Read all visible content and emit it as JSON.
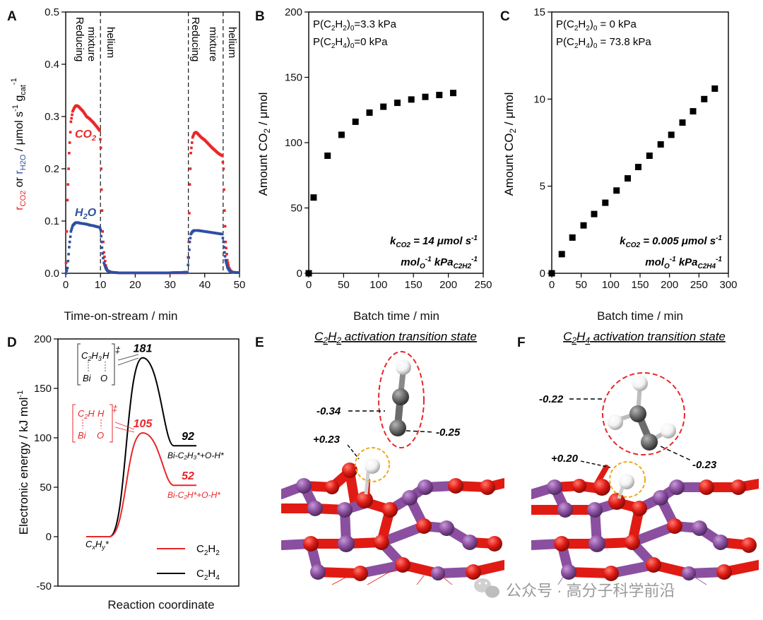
{
  "chart_data": [
    {
      "panel": "A",
      "type": "scatter",
      "xlabel": "Time-on-stream / min",
      "ylabel_parts": [
        "r",
        "CO2",
        " or ",
        "r",
        "H2O",
        " / μmol s",
        "-1",
        " g",
        "cat",
        "-1"
      ],
      "xlim": [
        0,
        50
      ],
      "ylim": [
        0,
        0.5
      ],
      "xticks": [
        "0",
        "10",
        "20",
        "30",
        "40",
        "50"
      ],
      "yticks": [
        "0.0",
        "0.1",
        "0.2",
        "0.3",
        "0.4",
        "0.5"
      ],
      "phase_labels": [
        "Reducing",
        "mixture",
        "helium",
        "Reducing",
        "mixture",
        "helium"
      ],
      "phase_boundaries": [
        10,
        35.3,
        45.3
      ],
      "series": [
        {
          "name": "CO2",
          "color": "#e8272a",
          "x": [
            0.1,
            0.5,
            1,
            1.5,
            2,
            2.5,
            3,
            3.5,
            4,
            5,
            6,
            7,
            8,
            9,
            9.8,
            10.1,
            10.3,
            10.6,
            11,
            11.5,
            12,
            13,
            15,
            20,
            25,
            30,
            35,
            35.4,
            35.7,
            36,
            36.5,
            37,
            37.5,
            38,
            39,
            40,
            41,
            42,
            43,
            44,
            45,
            45.4,
            45.7,
            46,
            46.5,
            47,
            47.5,
            48,
            50
          ],
          "y": [
            0.02,
            0.14,
            0.23,
            0.29,
            0.31,
            0.317,
            0.321,
            0.32,
            0.317,
            0.31,
            0.3,
            0.295,
            0.288,
            0.28,
            0.273,
            0.24,
            0.16,
            0.08,
            0.04,
            0.015,
            0.005,
            0.002,
            0.001,
            0.001,
            0.001,
            0.001,
            0.001,
            0.06,
            0.17,
            0.23,
            0.26,
            0.268,
            0.27,
            0.267,
            0.26,
            0.255,
            0.248,
            0.241,
            0.235,
            0.229,
            0.225,
            0.2,
            0.12,
            0.06,
            0.025,
            0.01,
            0.004,
            0.002,
            0.001
          ]
        },
        {
          "name": "H2O",
          "color": "#2e4fa3",
          "x": [
            0.1,
            0.5,
            1,
            1.5,
            2,
            2.5,
            3,
            3.5,
            4,
            5,
            6,
            7,
            8,
            9,
            9.8,
            10.1,
            10.3,
            10.6,
            11,
            11.5,
            12,
            13,
            15,
            20,
            25,
            30,
            35,
            35.4,
            35.7,
            36,
            36.5,
            37,
            37.5,
            38,
            39,
            40,
            41,
            42,
            43,
            44,
            45,
            45.4,
            45.7,
            46,
            46.5,
            47,
            47.5,
            48,
            50
          ],
          "y": [
            0,
            0.01,
            0.05,
            0.08,
            0.091,
            0.095,
            0.097,
            0.097,
            0.096,
            0.095,
            0.094,
            0.092,
            0.091,
            0.089,
            0.088,
            0.082,
            0.06,
            0.038,
            0.02,
            0.01,
            0.005,
            0.002,
            0.001,
            0.001,
            0.001,
            0.001,
            0.002,
            0.03,
            0.06,
            0.075,
            0.08,
            0.082,
            0.082,
            0.082,
            0.081,
            0.08,
            0.079,
            0.078,
            0.077,
            0.076,
            0.075,
            0.06,
            0.04,
            0.025,
            0.012,
            0.006,
            0.003,
            0.002,
            0.001
          ]
        }
      ],
      "series_labels": [
        "CO",
        "2",
        "H",
        "2",
        "O"
      ]
    },
    {
      "panel": "B",
      "type": "scatter",
      "xlabel": "Batch time / min",
      "ylabel_parts": [
        "Amount CO",
        "2",
        " / μmol"
      ],
      "xlim": [
        0,
        250
      ],
      "ylim": [
        0,
        200
      ],
      "xticks": [
        "0",
        "50",
        "100",
        "150",
        "200",
        "250"
      ],
      "yticks": [
        "0",
        "50",
        "100",
        "150",
        "200"
      ],
      "conditions": [
        [
          "P(C",
          "2",
          "H",
          "2",
          ")",
          "0",
          "=3.3 kPa"
        ],
        [
          "P(C",
          "2",
          "H",
          "4",
          ")",
          "0",
          "=0 kPa"
        ]
      ],
      "rate_label": [
        "k",
        "CO2",
        " = 14 μmol s",
        "-1",
        "mol",
        "O",
        "-1",
        " kPa",
        "C2H2",
        "-1"
      ],
      "x": [
        0,
        7,
        27,
        47,
        67,
        87,
        107,
        127,
        147,
        167,
        187,
        207
      ],
      "y": [
        0,
        58,
        90,
        106,
        116,
        123,
        127.5,
        130.5,
        133,
        135,
        136.5,
        138
      ]
    },
    {
      "panel": "C",
      "type": "scatter",
      "xlabel": "Batch time / min",
      "ylabel_parts": [
        "Amount CO",
        "2",
        " / μmol"
      ],
      "xlim": [
        0,
        300
      ],
      "ylim": [
        0,
        15
      ],
      "xticks": [
        "0",
        "50",
        "100",
        "150",
        "200",
        "250",
        "300"
      ],
      "yticks": [
        "0",
        "5",
        "10",
        "15"
      ],
      "conditions": [
        [
          "P(C",
          "2",
          "H",
          "2",
          ")",
          "0",
          " = 0 kPa"
        ],
        [
          "P(C",
          "2",
          "H",
          "4",
          ")",
          "0",
          " = 73.8 kPa"
        ]
      ],
      "rate_label": [
        "k",
        "CO2",
        " = 0.005 μmol s",
        "-1",
        "mol",
        "O",
        "-1",
        " kPa",
        "C2H4",
        "-1"
      ],
      "x": [
        0,
        17,
        35,
        54,
        72,
        91,
        110,
        129,
        147,
        166,
        185,
        203,
        222,
        240,
        259,
        277
      ],
      "y": [
        0,
        1.1,
        2.05,
        2.75,
        3.4,
        4.05,
        4.75,
        5.45,
        6.1,
        6.75,
        7.4,
        7.95,
        8.65,
        9.3,
        10.0,
        10.6
      ]
    },
    {
      "panel": "D",
      "type": "line",
      "xlabel": "Reaction coordinate",
      "ylabel_parts": [
        "Electronic energy / kJ mol",
        "-1"
      ],
      "ylim": [
        -50,
        200
      ],
      "yticks": [
        "-50",
        "0",
        "50",
        "100",
        "150",
        "200"
      ],
      "start_label": [
        "C",
        "x",
        "H",
        "y",
        "*"
      ],
      "series": [
        {
          "name": "C2H4",
          "color": "#000000",
          "levels": [
            0,
            181,
            92
          ],
          "barrier_label": "181",
          "end_label": "92",
          "product_label": "Bi-C₂H₃*+O-H*",
          "ts_label": [
            "C",
            "2",
            "H",
            "3",
            "H",
            "‡",
            "Bi",
            "O"
          ]
        },
        {
          "name": "C2H2",
          "color": "#e8272a",
          "levels": [
            0,
            105,
            52
          ],
          "barrier_label": "105",
          "end_label": "52",
          "product_label": "Bi-C₂H*+O-H*",
          "ts_label": [
            "C",
            "2",
            "H",
            "H",
            "‡",
            "Bi",
            "O"
          ]
        }
      ],
      "legend": [
        [
          "C",
          "2",
          "H",
          "2"
        ],
        [
          "C",
          "2",
          "H",
          "4"
        ]
      ]
    }
  ],
  "panels": {
    "A": "A",
    "B": "B",
    "C": "C",
    "D": "D",
    "E": "E",
    "F": "F"
  },
  "structures": {
    "E": {
      "title_parts": [
        "C",
        "2",
        "H",
        "2",
        " activation transition state"
      ],
      "charges": [
        "-0.34",
        "-0.25",
        "+0.23"
      ]
    },
    "F": {
      "title_parts": [
        "C",
        "2",
        "H",
        "4",
        " activation transition state"
      ],
      "charges": [
        "-0.22",
        "-0.23",
        "+0.20"
      ]
    }
  },
  "colors": {
    "bi": "#8b4fa0",
    "o": "#e01b14",
    "h": "#f2f2f2",
    "c": "#6b6b6b",
    "dash_red": "#e8272a",
    "dash_orange": "#f0a818"
  },
  "watermark": "公众号 · 高分子科学前沿"
}
